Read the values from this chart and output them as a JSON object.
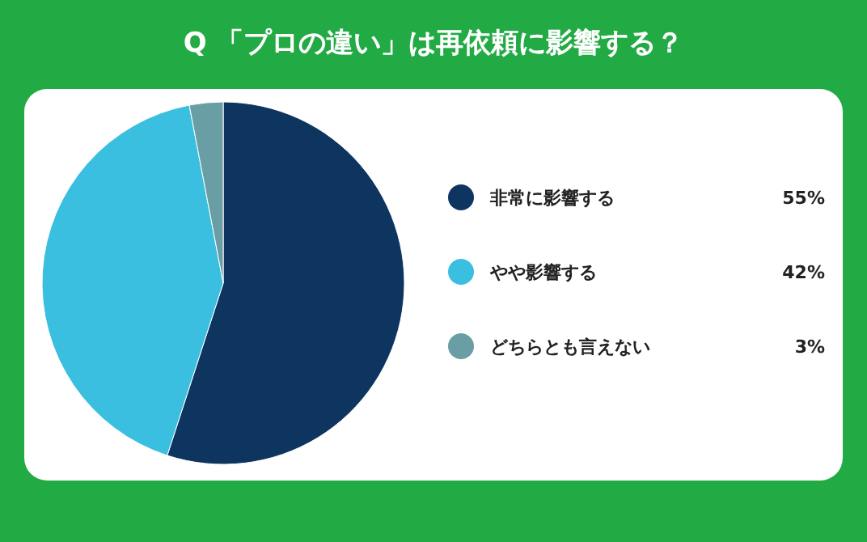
{
  "chart_data": {
    "type": "pie",
    "title": "Q 「プロの違い」は再依頼に影響する？",
    "categories": [
      "非常に影響する",
      "やや影響する",
      "どちらとも言えない"
    ],
    "values": [
      55,
      42,
      3
    ],
    "colors": [
      "#0d3560",
      "#3bbfe0",
      "#6a9ea5"
    ],
    "value_labels": [
      "55%",
      "42%",
      "3%"
    ],
    "legend": "right"
  }
}
